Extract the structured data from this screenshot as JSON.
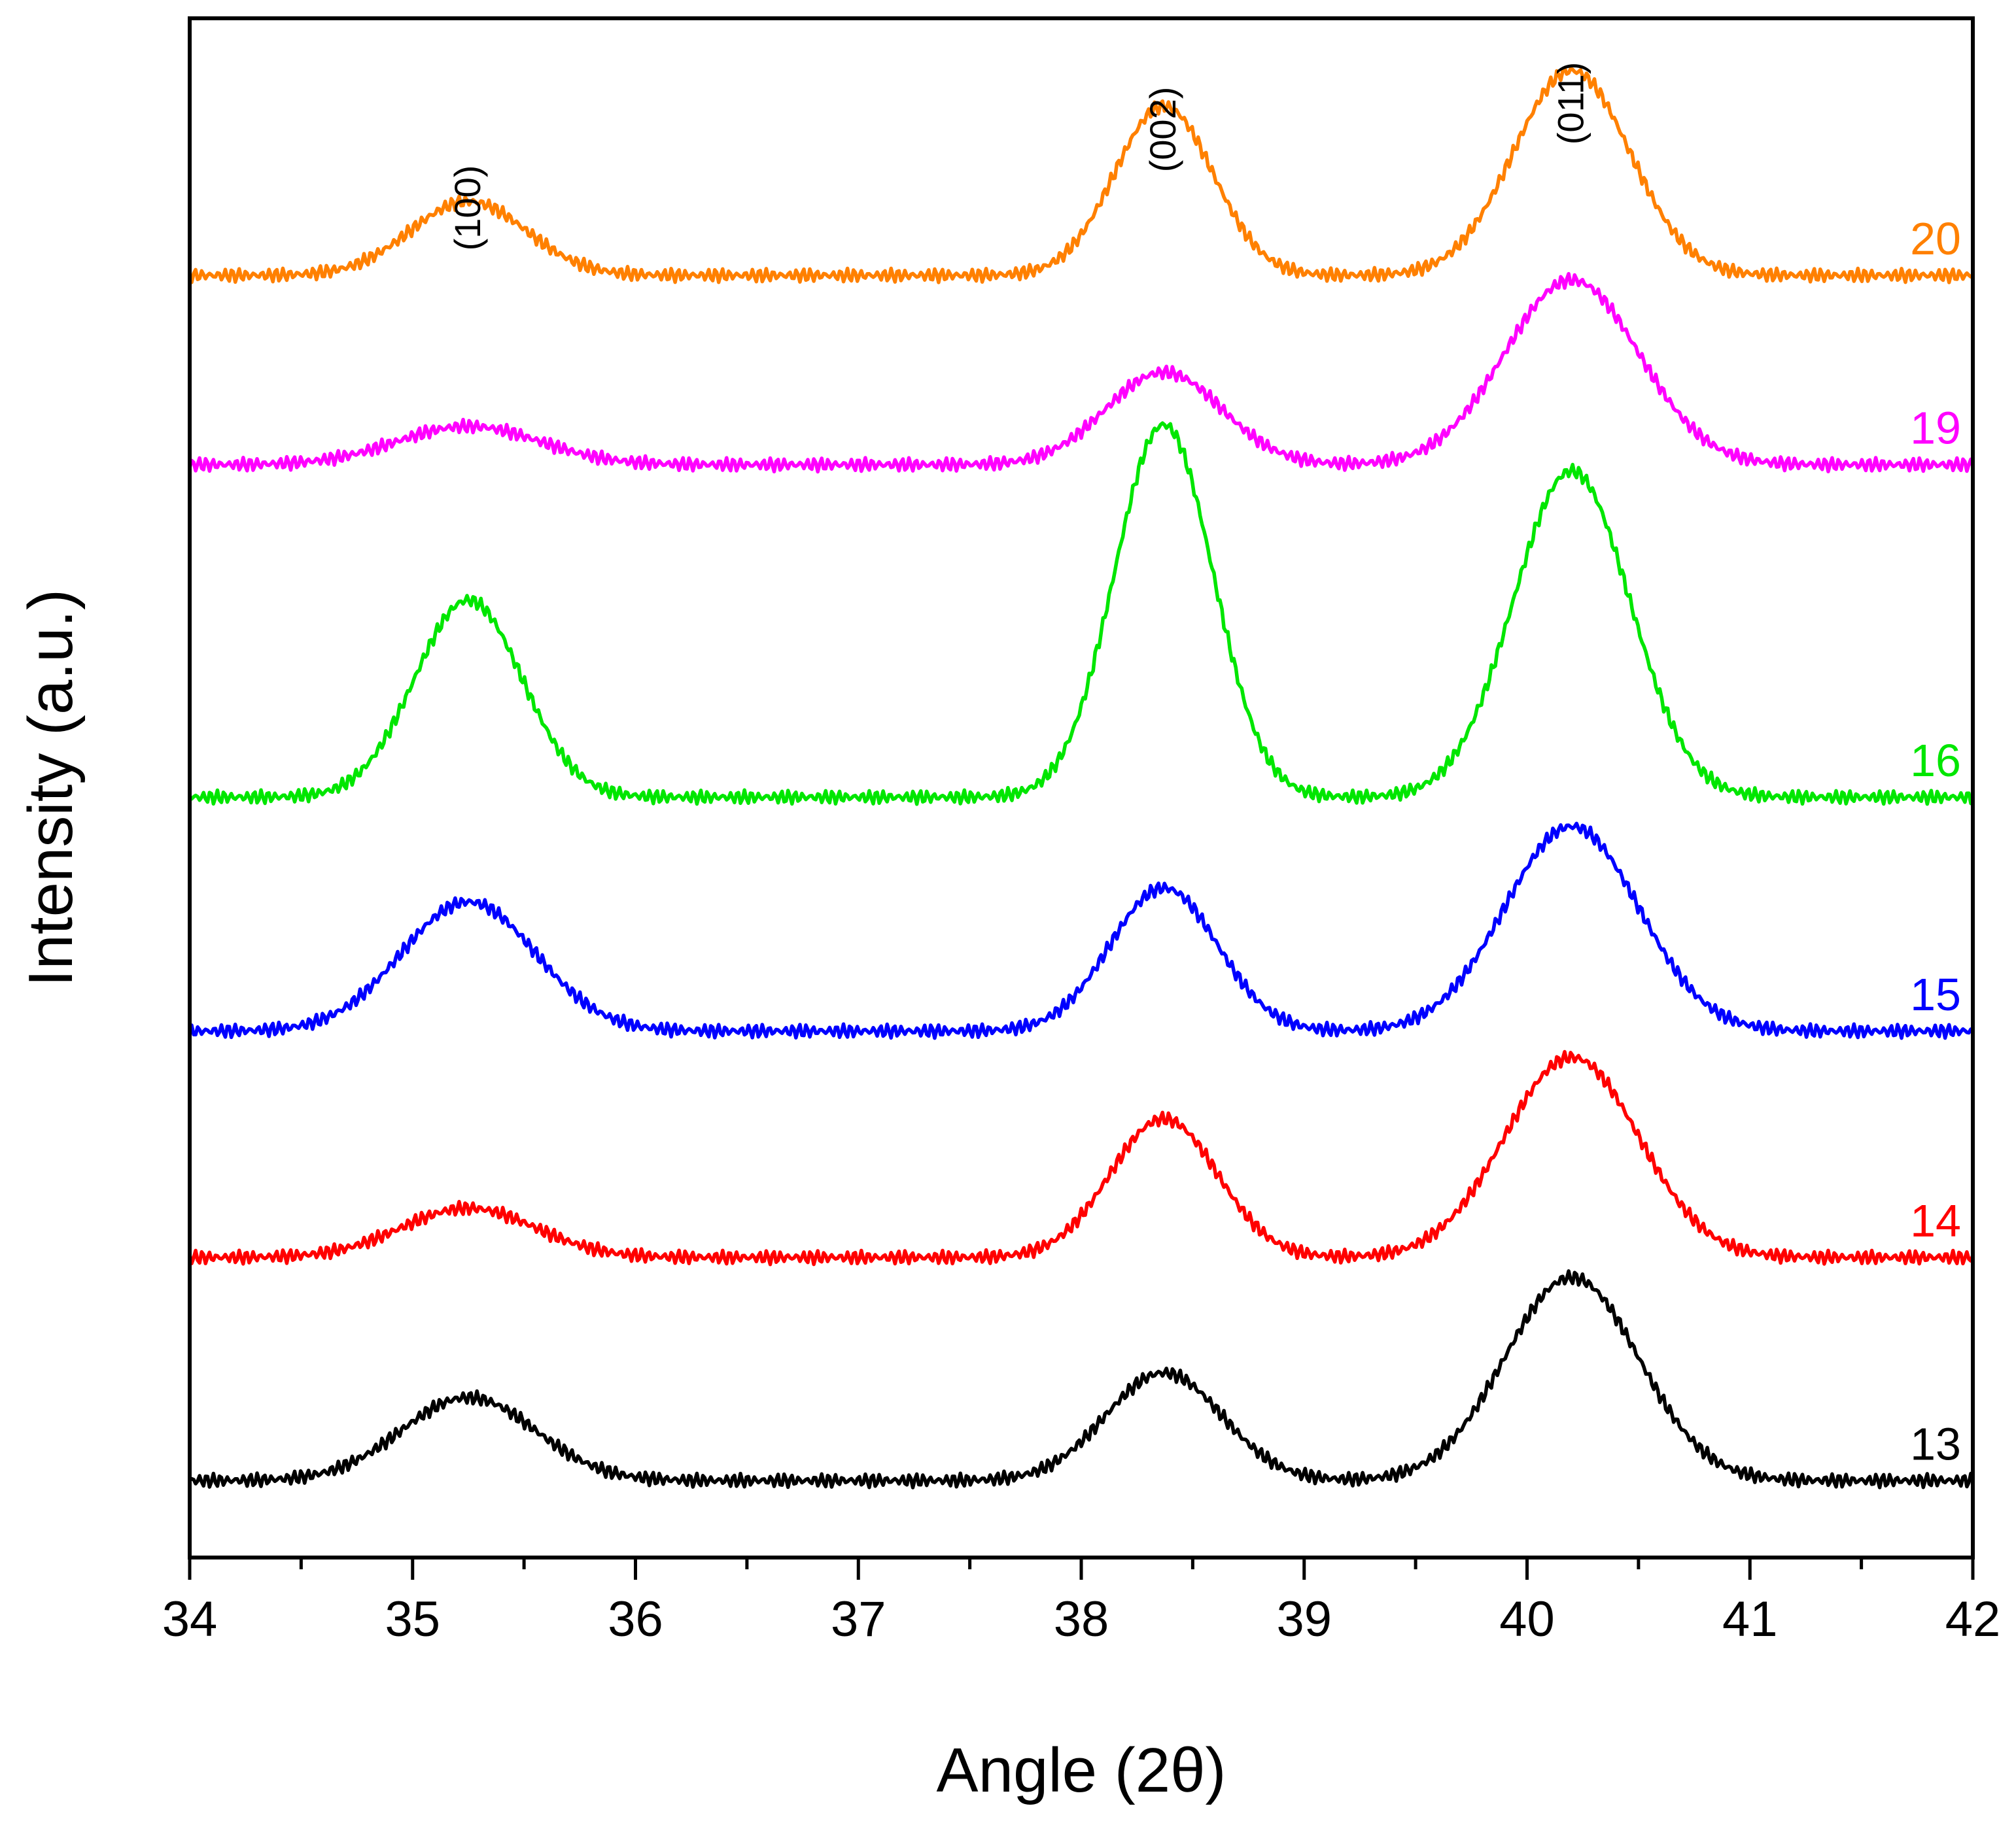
{
  "chart_data": {
    "type": "line",
    "title": "",
    "xlabel": "Angle (2θ)",
    "ylabel": "Intensity (a.u.)",
    "xlim": [
      34,
      42
    ],
    "xticks": [
      "34",
      "35",
      "36",
      "37",
      "38",
      "39",
      "40",
      "41",
      "42"
    ],
    "ylim": [
      0,
      100
    ],
    "grid": false,
    "peak_annotations": [
      {
        "label": "(100)",
        "x": 35.25
      },
      {
        "label": "(002)",
        "x": 38.37
      },
      {
        "label": "(011)",
        "x": 40.2
      }
    ],
    "series": [
      {
        "name": "13",
        "color": "#000000",
        "baseline": 5,
        "peaks": [
          {
            "x": 35.25,
            "h": 5.4,
            "w": 0.3
          },
          {
            "x": 38.37,
            "h": 7.0,
            "w": 0.26
          },
          {
            "x": 40.2,
            "h": 13.2,
            "w": 0.3
          }
        ]
      },
      {
        "name": "14",
        "color": "#ff0000",
        "baseline": 19.5,
        "peaks": [
          {
            "x": 35.25,
            "h": 3.2,
            "w": 0.3
          },
          {
            "x": 38.37,
            "h": 9.0,
            "w": 0.24
          },
          {
            "x": 40.2,
            "h": 13.0,
            "w": 0.3
          }
        ]
      },
      {
        "name": "15",
        "color": "#0000ff",
        "baseline": 34.2,
        "peaks": [
          {
            "x": 35.25,
            "h": 8.4,
            "w": 0.3
          },
          {
            "x": 38.37,
            "h": 9.3,
            "w": 0.24
          },
          {
            "x": 40.2,
            "h": 13.3,
            "w": 0.3
          }
        ]
      },
      {
        "name": "16",
        "color": "#00e600",
        "baseline": 49.4,
        "peaks": [
          {
            "x": 35.25,
            "h": 12.8,
            "w": 0.24
          },
          {
            "x": 38.37,
            "h": 24.2,
            "w": 0.22
          },
          {
            "x": 40.2,
            "h": 21.2,
            "w": 0.26
          }
        ]
      },
      {
        "name": "19",
        "color": "#ff00ff",
        "baseline": 71.0,
        "peaks": [
          {
            "x": 35.25,
            "h": 2.5,
            "w": 0.32
          },
          {
            "x": 38.37,
            "h": 6.0,
            "w": 0.26
          },
          {
            "x": 40.2,
            "h": 12.0,
            "w": 0.3
          }
        ]
      },
      {
        "name": "20",
        "color": "#ff8000",
        "baseline": 83.3,
        "peaks": [
          {
            "x": 35.25,
            "h": 4.8,
            "w": 0.26
          },
          {
            "x": 38.37,
            "h": 11.0,
            "w": 0.22
          },
          {
            "x": 40.2,
            "h": 13.3,
            "w": 0.26
          }
        ]
      }
    ]
  }
}
